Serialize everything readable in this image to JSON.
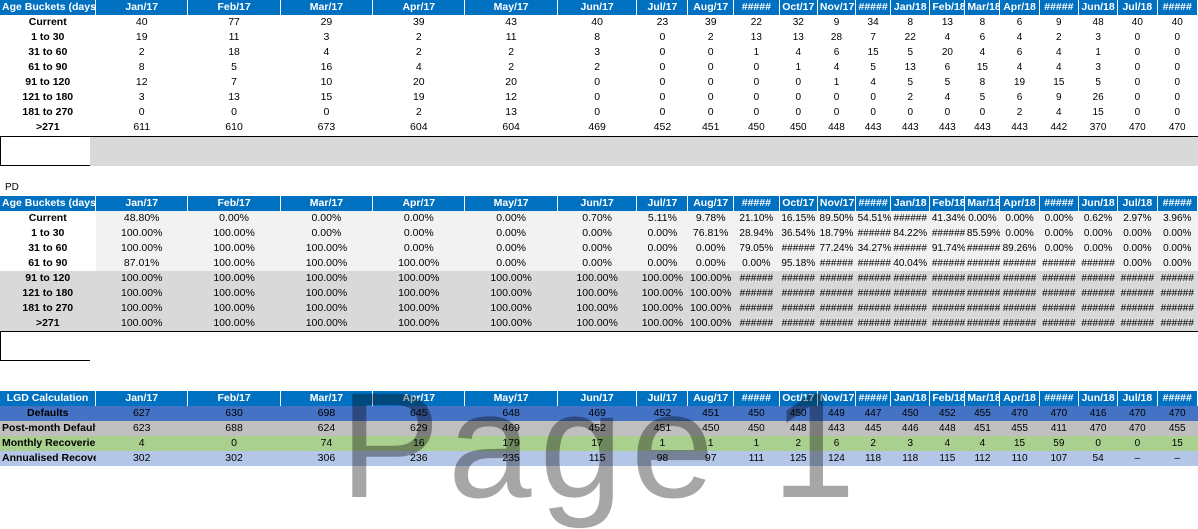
{
  "cols": [
    "Jan/17",
    "Feb/17",
    "Mar/17",
    "Apr/17",
    "May/17",
    "Jun/17",
    "Jul/17",
    "Aug/17",
    "#####",
    "Oct/17",
    "Nov/17",
    "#####",
    "Jan/18",
    "Feb/18",
    "Mar/18",
    "Apr/18",
    "#####",
    "Jun/18",
    "Jul/18",
    "#####"
  ],
  "table1": {
    "header": "Age Buckets (days",
    "rows": [
      {
        "label": "Current",
        "values": [
          "40",
          "77",
          "29",
          "39",
          "43",
          "40",
          "23",
          "39",
          "22",
          "32",
          "9",
          "34",
          "8",
          "13",
          "8",
          "6",
          "9",
          "48",
          "40",
          "40"
        ]
      },
      {
        "label": "1 to 30",
        "values": [
          "19",
          "11",
          "3",
          "2",
          "11",
          "8",
          "0",
          "2",
          "13",
          "13",
          "28",
          "7",
          "22",
          "4",
          "6",
          "4",
          "2",
          "3",
          "0",
          "0"
        ]
      },
      {
        "label": "31 to 60",
        "values": [
          "2",
          "18",
          "4",
          "2",
          "2",
          "3",
          "0",
          "0",
          "1",
          "4",
          "6",
          "15",
          "5",
          "20",
          "4",
          "6",
          "4",
          "1",
          "0",
          "0"
        ]
      },
      {
        "label": "61 to 90",
        "values": [
          "8",
          "5",
          "16",
          "4",
          "2",
          "2",
          "0",
          "0",
          "0",
          "1",
          "4",
          "5",
          "13",
          "6",
          "15",
          "4",
          "4",
          "3",
          "0",
          "0"
        ]
      },
      {
        "label": "91 to 120",
        "values": [
          "12",
          "7",
          "10",
          "20",
          "20",
          "0",
          "0",
          "0",
          "0",
          "0",
          "1",
          "4",
          "5",
          "5",
          "8",
          "19",
          "15",
          "5",
          "0",
          "0"
        ]
      },
      {
        "label": "121 to 180",
        "values": [
          "3",
          "13",
          "15",
          "19",
          "12",
          "0",
          "0",
          "0",
          "0",
          "0",
          "0",
          "0",
          "2",
          "4",
          "5",
          "6",
          "9",
          "26",
          "0",
          "0"
        ]
      },
      {
        "label": "181 to 270",
        "values": [
          "0",
          "0",
          "0",
          "2",
          "13",
          "0",
          "0",
          "0",
          "0",
          "0",
          "0",
          "0",
          "0",
          "0",
          "0",
          "2",
          "4",
          "15",
          "0",
          "0"
        ]
      },
      {
        "label": ">271",
        "values": [
          "611",
          "610",
          "673",
          "604",
          "604",
          "469",
          "452",
          "451",
          "450",
          "450",
          "448",
          "443",
          "443",
          "443",
          "443",
          "443",
          "442",
          "370",
          "470",
          "470"
        ]
      }
    ]
  },
  "pd_label": "PD",
  "table2": {
    "header": "Age Buckets (days",
    "rows": [
      {
        "label": "Current",
        "values": [
          "48.80%",
          "0.00%",
          "0.00%",
          "0.00%",
          "0.00%",
          "0.70%",
          "5.11%",
          "9.78%",
          "21.10%",
          "16.15%",
          "89.50%",
          "54.51%",
          "######",
          "41.34%",
          "0.00%",
          "0.00%",
          "0.00%",
          "0.62%",
          "2.97%",
          "3.96%"
        ]
      },
      {
        "label": "1 to 30",
        "values": [
          "100.00%",
          "100.00%",
          "0.00%",
          "0.00%",
          "0.00%",
          "0.00%",
          "0.00%",
          "76.81%",
          "28.94%",
          "36.54%",
          "18.79%",
          "######",
          "84.22%",
          "######",
          "85.59%",
          "0.00%",
          "0.00%",
          "0.00%",
          "0.00%",
          "0.00%"
        ]
      },
      {
        "label": "31 to 60",
        "values": [
          "100.00%",
          "100.00%",
          "100.00%",
          "0.00%",
          "0.00%",
          "0.00%",
          "0.00%",
          "0.00%",
          "79.05%",
          "######",
          "77.24%",
          "34.27%",
          "######",
          "91.74%",
          "######",
          "89.26%",
          "0.00%",
          "0.00%",
          "0.00%",
          "0.00%"
        ]
      },
      {
        "label": "61 to 90",
        "values": [
          "87.01%",
          "100.00%",
          "100.00%",
          "100.00%",
          "0.00%",
          "0.00%",
          "0.00%",
          "0.00%",
          "0.00%",
          "95.18%",
          "######",
          "######",
          "40.04%",
          "######",
          "######",
          "######",
          "######",
          "######",
          "0.00%",
          "0.00%"
        ]
      },
      {
        "label": "91 to 120",
        "values": [
          "100.00%",
          "100.00%",
          "100.00%",
          "100.00%",
          "100.00%",
          "100.00%",
          "100.00%",
          "100.00%",
          "######",
          "######",
          "######",
          "######",
          "######",
          "######",
          "######",
          "######",
          "######",
          "######",
          "######",
          "######"
        ]
      },
      {
        "label": "121 to 180",
        "values": [
          "100.00%",
          "100.00%",
          "100.00%",
          "100.00%",
          "100.00%",
          "100.00%",
          "100.00%",
          "100.00%",
          "######",
          "######",
          "######",
          "######",
          "######",
          "######",
          "######",
          "######",
          "######",
          "######",
          "######",
          "######"
        ]
      },
      {
        "label": "181 to 270",
        "values": [
          "100.00%",
          "100.00%",
          "100.00%",
          "100.00%",
          "100.00%",
          "100.00%",
          "100.00%",
          "100.00%",
          "######",
          "######",
          "######",
          "######",
          "######",
          "######",
          "######",
          "######",
          "######",
          "######",
          "######",
          "######"
        ]
      },
      {
        "label": ">271",
        "values": [
          "100.00%",
          "100.00%",
          "100.00%",
          "100.00%",
          "100.00%",
          "100.00%",
          "100.00%",
          "100.00%",
          "######",
          "######",
          "######",
          "######",
          "######",
          "######",
          "######",
          "######",
          "######",
          "######",
          "######",
          "######"
        ]
      }
    ]
  },
  "table3": {
    "header": "LGD Calculation",
    "rows": [
      {
        "label": "Defaults",
        "style": "blue",
        "values": [
          "627",
          "630",
          "698",
          "645",
          "648",
          "469",
          "452",
          "451",
          "450",
          "450",
          "449",
          "447",
          "450",
          "452",
          "455",
          "470",
          "470",
          "416",
          "470",
          "470"
        ]
      },
      {
        "label": "Post-month Default",
        "style": "lgray",
        "values": [
          "623",
          "688",
          "624",
          "629",
          "469",
          "452",
          "451",
          "450",
          "450",
          "448",
          "443",
          "445",
          "446",
          "448",
          "451",
          "455",
          "411",
          "470",
          "470",
          "455"
        ]
      },
      {
        "label": "Monthly Recoverie",
        "style": "green",
        "values": [
          "4",
          "0",
          "74",
          "16",
          "179",
          "17",
          "1",
          "1",
          "1",
          "2",
          "6",
          "2",
          "3",
          "4",
          "4",
          "15",
          "59",
          "0",
          "0",
          "15"
        ]
      },
      {
        "label": "Annualised Recover",
        "style": "lblue",
        "values": [
          "302",
          "302",
          "306",
          "236",
          "235",
          "115",
          "98",
          "97",
          "111",
          "125",
          "124",
          "118",
          "118",
          "115",
          "112",
          "110",
          "107",
          "54",
          "–",
          "–"
        ]
      }
    ]
  },
  "watermark": "Page 1"
}
